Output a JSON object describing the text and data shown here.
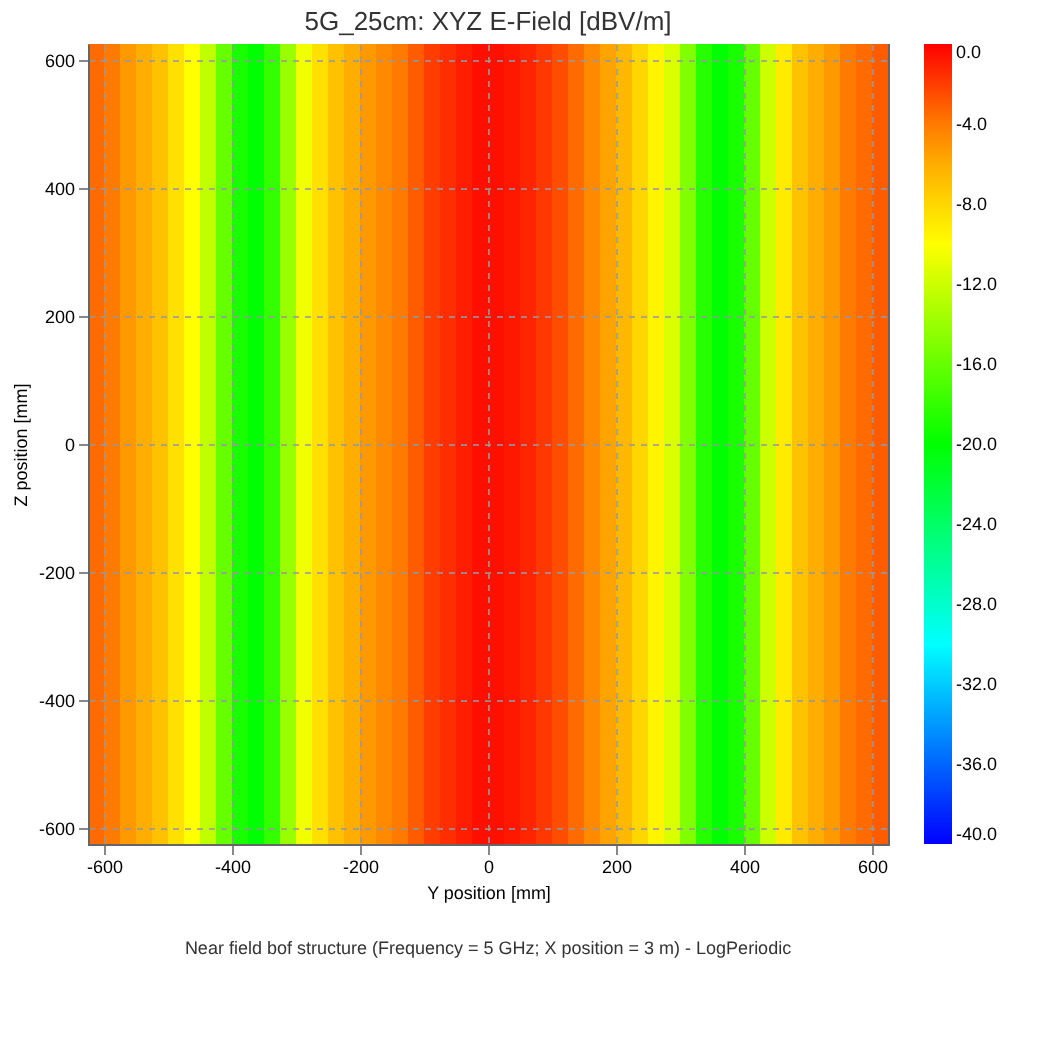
{
  "chart_data": {
    "type": "heatmap",
    "title": "5G_25cm: XYZ E-Field [dBV/m]",
    "xlabel": "Y position [mm]",
    "ylabel": "Z position [mm]",
    "annotations": [
      "Near field bof structure (Frequency = 5 GHz; X position = 3 m) - LogPeriodic"
    ],
    "x": [
      -612.5,
      -587.5,
      -562.5,
      -537.5,
      -512.5,
      -487.5,
      -462.5,
      -437.5,
      -412.5,
      -387.5,
      -362.5,
      -337.5,
      -312.5,
      -287.5,
      -262.5,
      -237.5,
      -212.5,
      -187.5,
      -162.5,
      -137.5,
      -112.5,
      -87.5,
      -62.5,
      -37.5,
      -12.5,
      12.5,
      37.5,
      62.5,
      87.5,
      112.5,
      137.5,
      162.5,
      187.5,
      212.5,
      237.5,
      262.5,
      287.5,
      312.5,
      337.5,
      362.5,
      387.5,
      412.5,
      437.5,
      462.5,
      487.5,
      512.5,
      537.5,
      562.5,
      587.5,
      612.5
    ],
    "cells": [
      [
        -3.5,
        -4,
        -5,
        -6,
        -7,
        -8.5,
        -10,
        -12.5,
        -16,
        -19,
        -20,
        -18,
        -14,
        -10.5,
        -8.5,
        -7,
        -6,
        -5,
        -4.5,
        -4,
        -3,
        -2,
        -1.5,
        -1,
        -0.5,
        -0.5,
        -0.8,
        -1.2,
        -1.8,
        -2.5,
        -3.5,
        -4.5,
        -5.5,
        -6.5,
        -8,
        -9.5,
        -11.5,
        -15,
        -18.5,
        -20,
        -19,
        -16,
        -12,
        -9,
        -7,
        -6,
        -5,
        -4,
        -3.5,
        -3
      ]
    ],
    "xlim": [
      -625,
      625
    ],
    "ylim": [
      -625,
      625
    ],
    "xticks": [
      -600,
      -400,
      -200,
      0,
      200,
      400,
      600
    ],
    "yticks": [
      -600,
      -400,
      -200,
      0,
      200,
      400,
      600
    ],
    "clim": [
      -40,
      0
    ],
    "cticks": [
      {
        "value": 0,
        "label": "0.0"
      },
      {
        "value": -4,
        "label": "-4.0"
      },
      {
        "value": -8,
        "label": "-8.0"
      },
      {
        "value": -12,
        "label": "-12.0"
      },
      {
        "value": -16,
        "label": "-16.0"
      },
      {
        "value": -20,
        "label": "-20.0"
      },
      {
        "value": -24,
        "label": "-24.0"
      },
      {
        "value": -28,
        "label": "-28.0"
      },
      {
        "value": -32,
        "label": "-32.0"
      },
      {
        "value": -36,
        "label": "-36.0"
      },
      {
        "value": -40,
        "label": "-40.0"
      }
    ],
    "grid": true
  }
}
